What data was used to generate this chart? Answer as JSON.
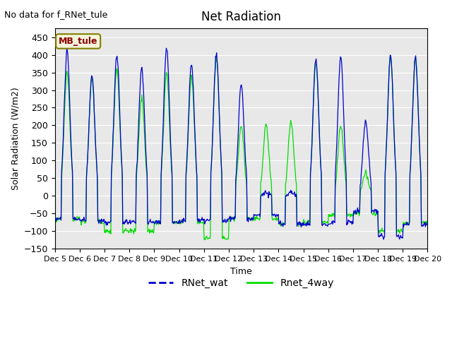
{
  "title": "Net Radiation",
  "note": "No data for f_RNet_tule",
  "ylabel": "Solar Radiation (W/m2)",
  "xlabel": "Time",
  "ylim": [
    -150,
    475
  ],
  "yticks": [
    -150,
    -100,
    -50,
    0,
    50,
    100,
    150,
    200,
    250,
    300,
    350,
    400,
    450
  ],
  "xtick_labels": [
    "Dec 5",
    "Dec 6",
    "Dec 7",
    "Dec 8",
    "Dec 9",
    "Dec 10",
    "Dec 11",
    "Dec 12",
    "Dec 13",
    "Dec 14",
    "Dec 15",
    "Dec 16",
    "Dec 17",
    "Dec 18",
    "Dec 19",
    "Dec 20"
  ],
  "color_blue": "#0000CD",
  "color_green": "#00DD00",
  "bg_color": "#E8E8E8",
  "legend_label1": "RNet_wat",
  "legend_label2": "Rnet_4way",
  "mb_tule_label": "MB_tule",
  "mb_tule_color": "#8B0000",
  "mb_tule_bg": "#F5F5DC",
  "blue_peaks": [
    410,
    340,
    400,
    365,
    420,
    375,
    400,
    315,
    10,
    10,
    385,
    395,
    210,
    395,
    390
  ],
  "blue_nights": [
    -65.0,
    -70.0,
    -75.0,
    -75.0,
    -75.0,
    -70.0,
    -70.0,
    -65.0,
    -55.0,
    -80.0,
    -80.0,
    -75.0,
    -45.0,
    -115.0,
    -80.0
  ],
  "green_peaks": [
    350,
    335,
    360,
    280,
    350,
    340,
    390,
    200,
    200,
    210,
    380,
    200,
    65,
    400,
    395
  ],
  "green_nights": [
    -65.0,
    -72.0,
    -100.0,
    -100.0,
    -75.0,
    -75.0,
    -120.0,
    -65.0,
    -65.0,
    -80.0,
    -75.0,
    -55.0,
    -50.0,
    -100.0,
    -75.0
  ],
  "n_days": 15,
  "pts_per_day": 48
}
